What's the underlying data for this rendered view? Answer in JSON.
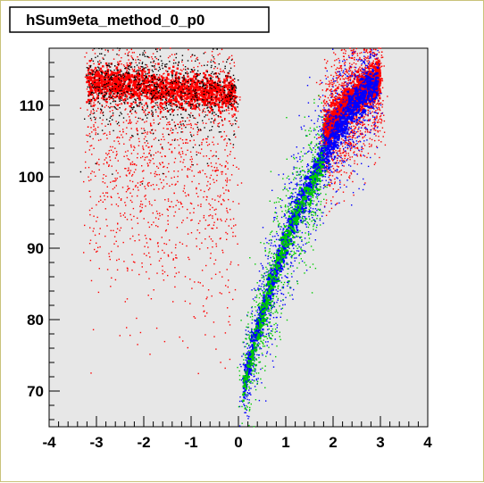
{
  "chart_data": {
    "type": "scatter",
    "title": "hSum9eta_method_0_p0",
    "xlabel": "",
    "ylabel": "",
    "xlim": [
      -4,
      4
    ],
    "ylim": [
      65,
      118
    ],
    "x_ticks": [
      -4,
      -3,
      -2,
      -1,
      0,
      1,
      2,
      3,
      4
    ],
    "y_ticks": [
      70,
      80,
      90,
      100,
      110
    ],
    "grid": false,
    "legend": "none",
    "series": [
      {
        "color": "#ff0000",
        "band": {
          "x": [
            -3.2,
            -2.8,
            -2.4,
            -2.0,
            -1.6,
            -1.2,
            -0.8,
            -0.4,
            -0.05
          ],
          "y": [
            113.2,
            113.4,
            113.0,
            112.6,
            112.2,
            112.0,
            111.8,
            111.6,
            111.4
          ]
        },
        "tail": {
          "x_range": [
            -3.2,
            0
          ],
          "y_min": 72
        }
      },
      {
        "color": "#ff0000",
        "band": {
          "x": [
            1.8,
            2.2,
            2.6,
            3.0
          ],
          "y": [
            106.0,
            109.5,
            112.0,
            113.8
          ]
        }
      },
      {
        "color": "#0000ff",
        "band": {
          "x": [
            0.1,
            0.3,
            0.6,
            0.9,
            1.2,
            1.5,
            1.8,
            2.1,
            2.4,
            2.7,
            2.95
          ],
          "y": [
            70,
            76,
            83,
            89,
            94.5,
            99,
            103,
            106.5,
            109.5,
            111.8,
            113.2
          ]
        }
      },
      {
        "color": "#00cc00",
        "band": {
          "x": [
            0.1,
            0.4,
            0.7,
            1.0,
            1.4,
            1.8
          ],
          "y": [
            70,
            78,
            85,
            91,
            97,
            102
          ]
        }
      },
      {
        "color": "#000000",
        "band": {
          "x": [
            -3.2,
            -2.0,
            -1.0,
            -0.05
          ],
          "y": [
            113.2,
            112.6,
            112.0,
            111.4
          ]
        }
      }
    ]
  },
  "colors": {
    "frame_background": "#ffffff",
    "plot_background": "#e7e7e7",
    "title_box": "#ffffff"
  }
}
